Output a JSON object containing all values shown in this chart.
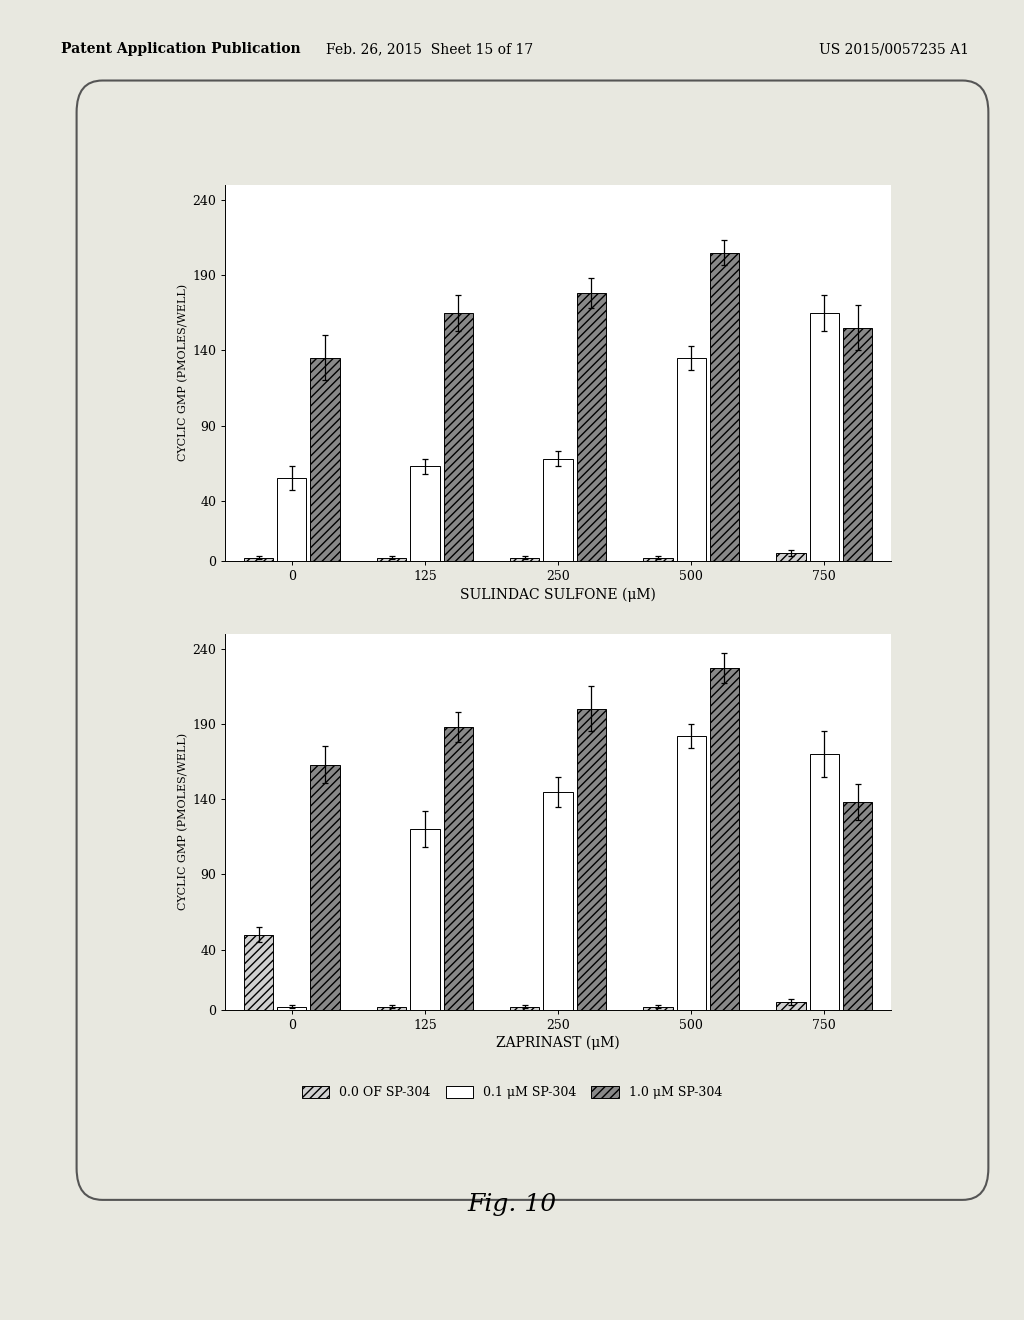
{
  "top_chart": {
    "title": "SULINDAC SULFONE (μM)",
    "ylabel": "CYCLIC GMP (PMOLES/WELL)",
    "categories": [
      "0",
      "125",
      "250",
      "500",
      "750"
    ],
    "series": [
      {
        "name": "0.0 OF SP-304",
        "values": [
          2,
          2,
          2,
          2,
          5
        ],
        "errors": [
          1,
          1,
          1,
          1,
          2
        ],
        "hatch": "////",
        "facecolor": "#d0d0d0",
        "edgecolor": "black"
      },
      {
        "name": "0.1 μM SP-304",
        "values": [
          55,
          63,
          68,
          135,
          165
        ],
        "errors": [
          8,
          5,
          5,
          8,
          12
        ],
        "hatch": "",
        "facecolor": "white",
        "edgecolor": "black"
      },
      {
        "name": "1.0 μM SP-304",
        "values": [
          135,
          165,
          178,
          205,
          155
        ],
        "errors": [
          15,
          12,
          10,
          8,
          15
        ],
        "hatch": "////",
        "facecolor": "#888888",
        "edgecolor": "black"
      }
    ],
    "ylim": [
      0,
      250
    ],
    "yticks": [
      0,
      40,
      90,
      140,
      190,
      240
    ]
  },
  "bottom_chart": {
    "title": "ZAPRINAST (μM)",
    "ylabel": "CYCLIC GMP (PMOLES/WELL)",
    "categories": [
      "0",
      "125",
      "250",
      "500",
      "750"
    ],
    "series": [
      {
        "name": "0.0 OF SP-304",
        "values": [
          50,
          2,
          2,
          2,
          5
        ],
        "errors": [
          5,
          1,
          1,
          1,
          2
        ],
        "hatch": "////",
        "facecolor": "#d0d0d0",
        "edgecolor": "black"
      },
      {
        "name": "0.1 μM SP-304",
        "values": [
          2,
          120,
          145,
          182,
          170
        ],
        "errors": [
          1,
          12,
          10,
          8,
          15
        ],
        "hatch": "",
        "facecolor": "white",
        "edgecolor": "black"
      },
      {
        "name": "1.0 μM SP-304",
        "values": [
          163,
          188,
          200,
          227,
          138
        ],
        "errors": [
          12,
          10,
          15,
          10,
          12
        ],
        "hatch": "////",
        "facecolor": "#888888",
        "edgecolor": "black"
      }
    ],
    "ylim": [
      0,
      250
    ],
    "yticks": [
      0,
      40,
      90,
      140,
      190,
      240
    ]
  },
  "legend": {
    "labels": [
      "0.0 OF SP-304",
      "0.1 μM SP-304",
      "1.0 μM SP-304"
    ],
    "hatches": [
      "////",
      "",
      "////"
    ],
    "facecolors": [
      "#d0d0d0",
      "white",
      "#888888"
    ],
    "edgecolor": "black"
  },
  "figure": {
    "header_text1": "Patent Application Publication",
    "header_text2": "Feb. 26, 2015  Sheet 15 of 17",
    "header_text3": "US 2015/0057235 A1",
    "figure_label": "Fig. 10",
    "background_color": "#e8e8e0",
    "bar_width": 0.25
  }
}
